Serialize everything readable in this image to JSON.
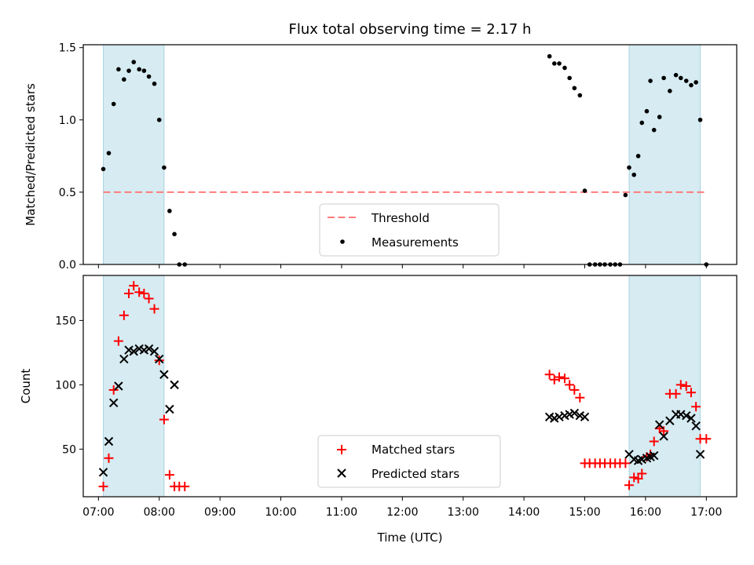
{
  "chart_data": [
    {
      "type": "scatter",
      "title": "Flux total observing time = 2.17 h",
      "xlabel": "",
      "ylabel": "Matched/Predicted stars",
      "xlim": [
        6.75,
        17.5
      ],
      "ylim": [
        0.0,
        1.52
      ],
      "yticks": [
        0.0,
        0.5,
        1.0,
        1.5
      ],
      "ytick_labels": [
        "0.0",
        "0.5",
        "1.0",
        "1.5"
      ],
      "threshold": 0.5,
      "shaded_spans": [
        [
          7.08,
          8.08
        ],
        [
          15.73,
          16.9
        ]
      ],
      "legend_position": "bottom-center",
      "legend": [
        "Threshold",
        "Measurements"
      ],
      "series": [
        {
          "name": "Measurements",
          "x": [
            7.08,
            7.17,
            7.25,
            7.33,
            7.42,
            7.5,
            7.58,
            7.67,
            7.75,
            7.83,
            7.92,
            8.0,
            8.08,
            8.17,
            8.25,
            8.33,
            8.42,
            14.42,
            14.5,
            14.58,
            14.67,
            14.75,
            14.83,
            14.92,
            15.0,
            15.08,
            15.17,
            15.25,
            15.33,
            15.42,
            15.5,
            15.58,
            15.67,
            15.73,
            15.81,
            15.88,
            15.94,
            16.02,
            16.08,
            16.14,
            16.23,
            16.3,
            16.4,
            16.5,
            16.58,
            16.67,
            16.75,
            16.83,
            16.9,
            17.0
          ],
          "y": [
            0.66,
            0.77,
            1.11,
            1.35,
            1.28,
            1.34,
            1.4,
            1.35,
            1.34,
            1.3,
            1.25,
            1.0,
            0.67,
            0.37,
            0.21,
            0.0,
            0.0,
            1.44,
            1.39,
            1.39,
            1.36,
            1.29,
            1.22,
            1.17,
            0.51,
            0.0,
            0.0,
            0.0,
            0.0,
            0.0,
            0.0,
            0.0,
            0.48,
            0.67,
            0.62,
            0.75,
            0.98,
            1.06,
            1.27,
            0.93,
            1.02,
            1.29,
            1.2,
            1.31,
            1.29,
            1.27,
            1.24,
            1.26,
            1.0,
            0.0
          ]
        }
      ]
    },
    {
      "type": "scatter",
      "title": "",
      "xlabel": "Time (UTC)",
      "ylabel": "Count",
      "xlim": [
        6.75,
        17.5
      ],
      "ylim": [
        13,
        185
      ],
      "yticks": [
        50,
        100,
        150
      ],
      "ytick_labels": [
        "50",
        "100",
        "150"
      ],
      "xticks": [
        7,
        8,
        9,
        10,
        11,
        12,
        13,
        14,
        15,
        16,
        17
      ],
      "xtick_labels": [
        "07:00",
        "08:00",
        "09:00",
        "10:00",
        "11:00",
        "12:00",
        "13:00",
        "14:00",
        "15:00",
        "16:00",
        "17:00"
      ],
      "shaded_spans": [
        [
          7.08,
          8.08
        ],
        [
          15.73,
          16.9
        ]
      ],
      "legend_position": "bottom-center",
      "legend": [
        "Matched stars",
        "Predicted stars"
      ],
      "series": [
        {
          "name": "Matched stars",
          "marker": "+",
          "color": "#ff0000",
          "x": [
            7.08,
            7.17,
            7.25,
            7.33,
            7.42,
            7.5,
            7.58,
            7.67,
            7.75,
            7.83,
            7.92,
            8.0,
            8.08,
            8.17,
            8.25,
            8.33,
            8.42,
            14.42,
            14.5,
            14.58,
            14.67,
            14.75,
            14.83,
            14.92,
            15.0,
            15.08,
            15.17,
            15.25,
            15.33,
            15.42,
            15.5,
            15.58,
            15.67,
            15.73,
            15.81,
            15.88,
            15.94,
            16.02,
            16.08,
            16.14,
            16.23,
            16.3,
            16.4,
            16.5,
            16.58,
            16.67,
            16.75,
            16.83,
            16.9,
            17.0
          ],
          "y": [
            21,
            43,
            96,
            134,
            154,
            171,
            177,
            172,
            171,
            167,
            159,
            119,
            73,
            30,
            21,
            21,
            21,
            108,
            104,
            106,
            105,
            100,
            96,
            90,
            39,
            39,
            39,
            39,
            39,
            39,
            39,
            39,
            39,
            22,
            28,
            27,
            31,
            44,
            46,
            56,
            66,
            64,
            93,
            93,
            100,
            99,
            94,
            83,
            58,
            58
          ]
        },
        {
          "name": "Predicted stars",
          "marker": "x",
          "color": "#000000",
          "x": [
            7.08,
            7.17,
            7.25,
            7.33,
            7.42,
            7.5,
            7.58,
            7.67,
            7.75,
            7.83,
            7.92,
            8.0,
            8.08,
            8.17,
            8.25,
            14.42,
            14.5,
            14.58,
            14.67,
            14.75,
            14.83,
            14.92,
            15.0,
            15.73,
            15.81,
            15.88,
            15.94,
            16.02,
            16.08,
            16.14,
            16.23,
            16.3,
            16.4,
            16.5,
            16.58,
            16.67,
            16.75,
            16.83,
            16.9
          ],
          "y": [
            32,
            56,
            86,
            99,
            120,
            127,
            126,
            128,
            127,
            128,
            126,
            120,
            108,
            81,
            100,
            75,
            74,
            75,
            76,
            77,
            78,
            76,
            75,
            46,
            42,
            41,
            42,
            43,
            44,
            45,
            69,
            60,
            72,
            77,
            77,
            76,
            74,
            68,
            46
          ]
        }
      ]
    }
  ]
}
